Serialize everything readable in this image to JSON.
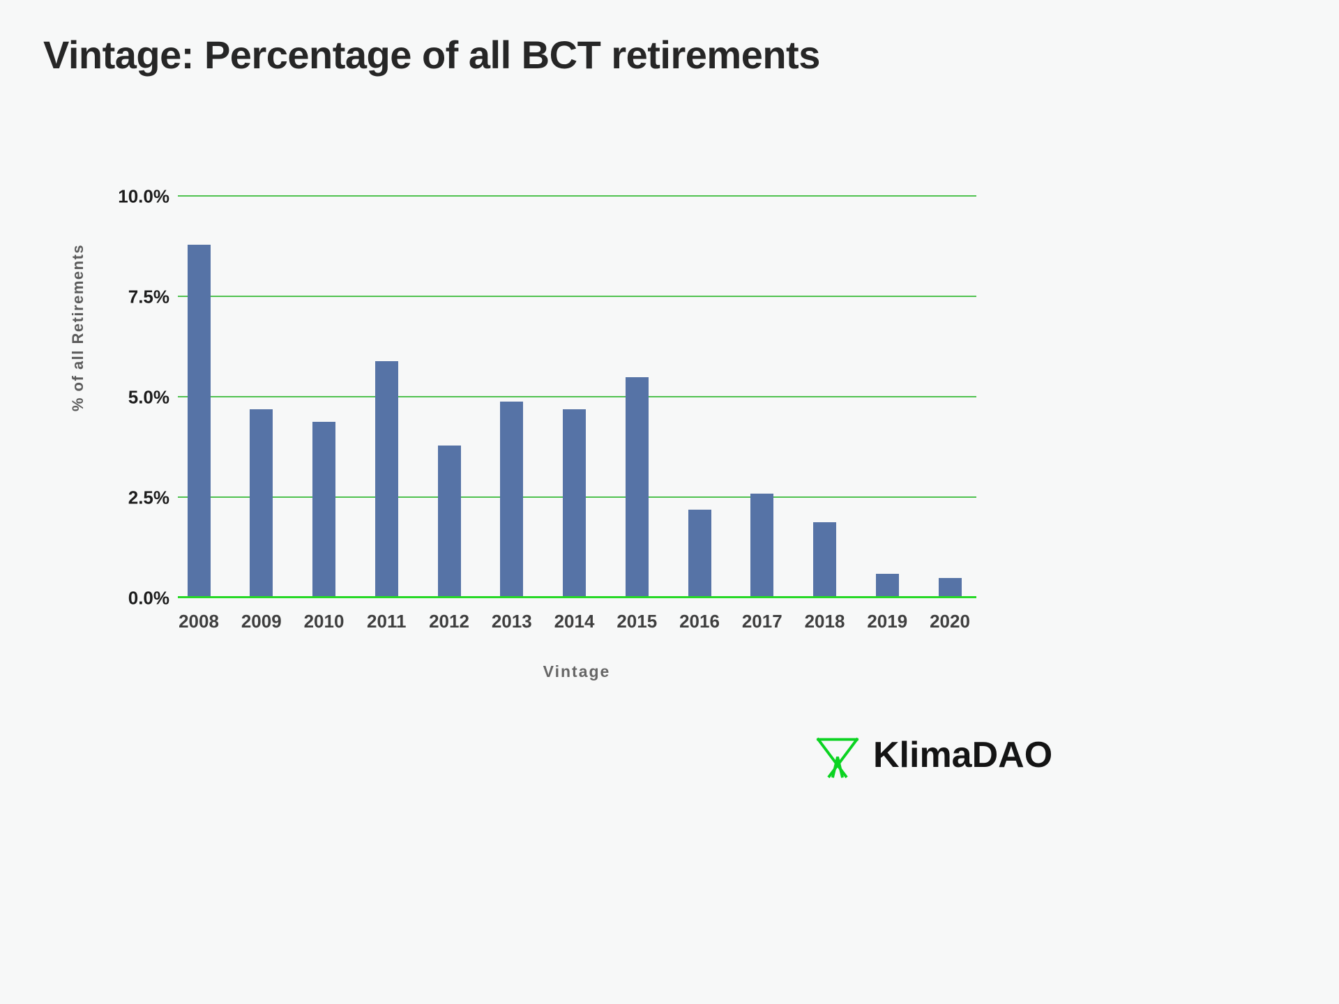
{
  "title": "Vintage: Percentage of all BCT retirements",
  "brand": {
    "name": "KlimaDAO",
    "logo_color": "#0bd321"
  },
  "chart_data": {
    "type": "bar",
    "title": "Vintage: Percentage of all BCT retirements",
    "categories": [
      "2008",
      "2009",
      "2010",
      "2011",
      "2012",
      "2013",
      "2014",
      "2015",
      "2016",
      "2017",
      "2018",
      "2019",
      "2020"
    ],
    "values": [
      8.8,
      4.7,
      4.4,
      5.9,
      3.8,
      4.9,
      4.7,
      5.5,
      2.2,
      2.6,
      1.9,
      0.6,
      0.5
    ],
    "xlabel": "Vintage",
    "ylabel": "% of all Retirements",
    "ylim": [
      0,
      10
    ],
    "yticks": [
      "0.0%",
      "2.5%",
      "5.0%",
      "7.5%",
      "10.0%"
    ],
    "ytick_values": [
      0,
      2.5,
      5,
      7.5,
      10
    ],
    "grid": true,
    "legend": "none",
    "bar_color": "#5673a6",
    "grid_color": "#4fc24f",
    "axis_line_color": "#26d926",
    "background_color": "#f7f8f8"
  }
}
